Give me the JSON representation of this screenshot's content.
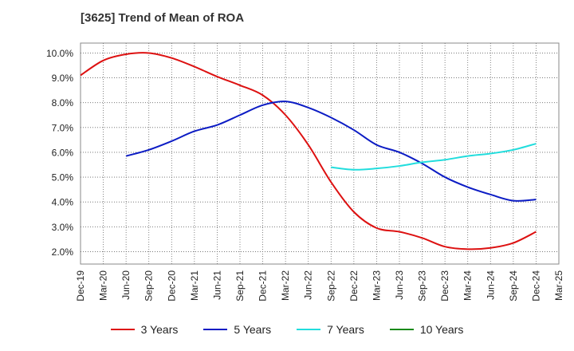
{
  "title": "[3625]  Trend of Mean of ROA",
  "chart_data": {
    "type": "line",
    "title": "[3625]  Trend of Mean of ROA",
    "xlabel": "",
    "ylabel": "",
    "x": [
      "Dec-19",
      "Mar-20",
      "Jun-20",
      "Sep-20",
      "Dec-20",
      "Mar-21",
      "Jun-21",
      "Sep-21",
      "Dec-21",
      "Mar-22",
      "Jun-22",
      "Sep-22",
      "Dec-22",
      "Mar-23",
      "Jun-23",
      "Sep-23",
      "Dec-23",
      "Mar-24",
      "Jun-24",
      "Sep-24",
      "Dec-24",
      "Mar-25"
    ],
    "ylim": [
      1.5,
      10.4
    ],
    "yticks": [
      "10.0%",
      "9.0%",
      "8.0%",
      "7.0%",
      "6.0%",
      "5.0%",
      "4.0%",
      "3.0%",
      "2.0%"
    ],
    "ytick_values": [
      10,
      9,
      8,
      7,
      6,
      5,
      4,
      3,
      2
    ],
    "grid": true,
    "legend_position": "bottom",
    "series": [
      {
        "name": "3 Years",
        "color": "#dd1111",
        "values": [
          9.1,
          9.7,
          9.95,
          10.0,
          9.8,
          9.45,
          9.05,
          8.7,
          8.3,
          7.5,
          6.3,
          4.8,
          3.6,
          2.95,
          2.8,
          2.55,
          2.2,
          2.1,
          2.15,
          2.35,
          2.8,
          null
        ]
      },
      {
        "name": "5 Years",
        "color": "#0c1cc4",
        "values": [
          null,
          null,
          5.85,
          6.1,
          6.45,
          6.85,
          7.1,
          7.5,
          7.9,
          8.05,
          7.8,
          7.4,
          6.9,
          6.3,
          6.0,
          5.55,
          5.0,
          4.6,
          4.3,
          4.05,
          4.1,
          null
        ]
      },
      {
        "name": "7 Years",
        "color": "#22dddd",
        "values": [
          null,
          null,
          null,
          null,
          null,
          null,
          null,
          null,
          null,
          null,
          null,
          5.4,
          5.3,
          5.35,
          5.45,
          5.6,
          5.7,
          5.85,
          5.95,
          6.1,
          6.35,
          null
        ]
      },
      {
        "name": "10 Years",
        "color": "#1a8a1a",
        "values": [
          null,
          null,
          null,
          null,
          null,
          null,
          null,
          null,
          null,
          null,
          null,
          null,
          null,
          null,
          null,
          null,
          null,
          null,
          null,
          null,
          null,
          null
        ]
      }
    ]
  }
}
